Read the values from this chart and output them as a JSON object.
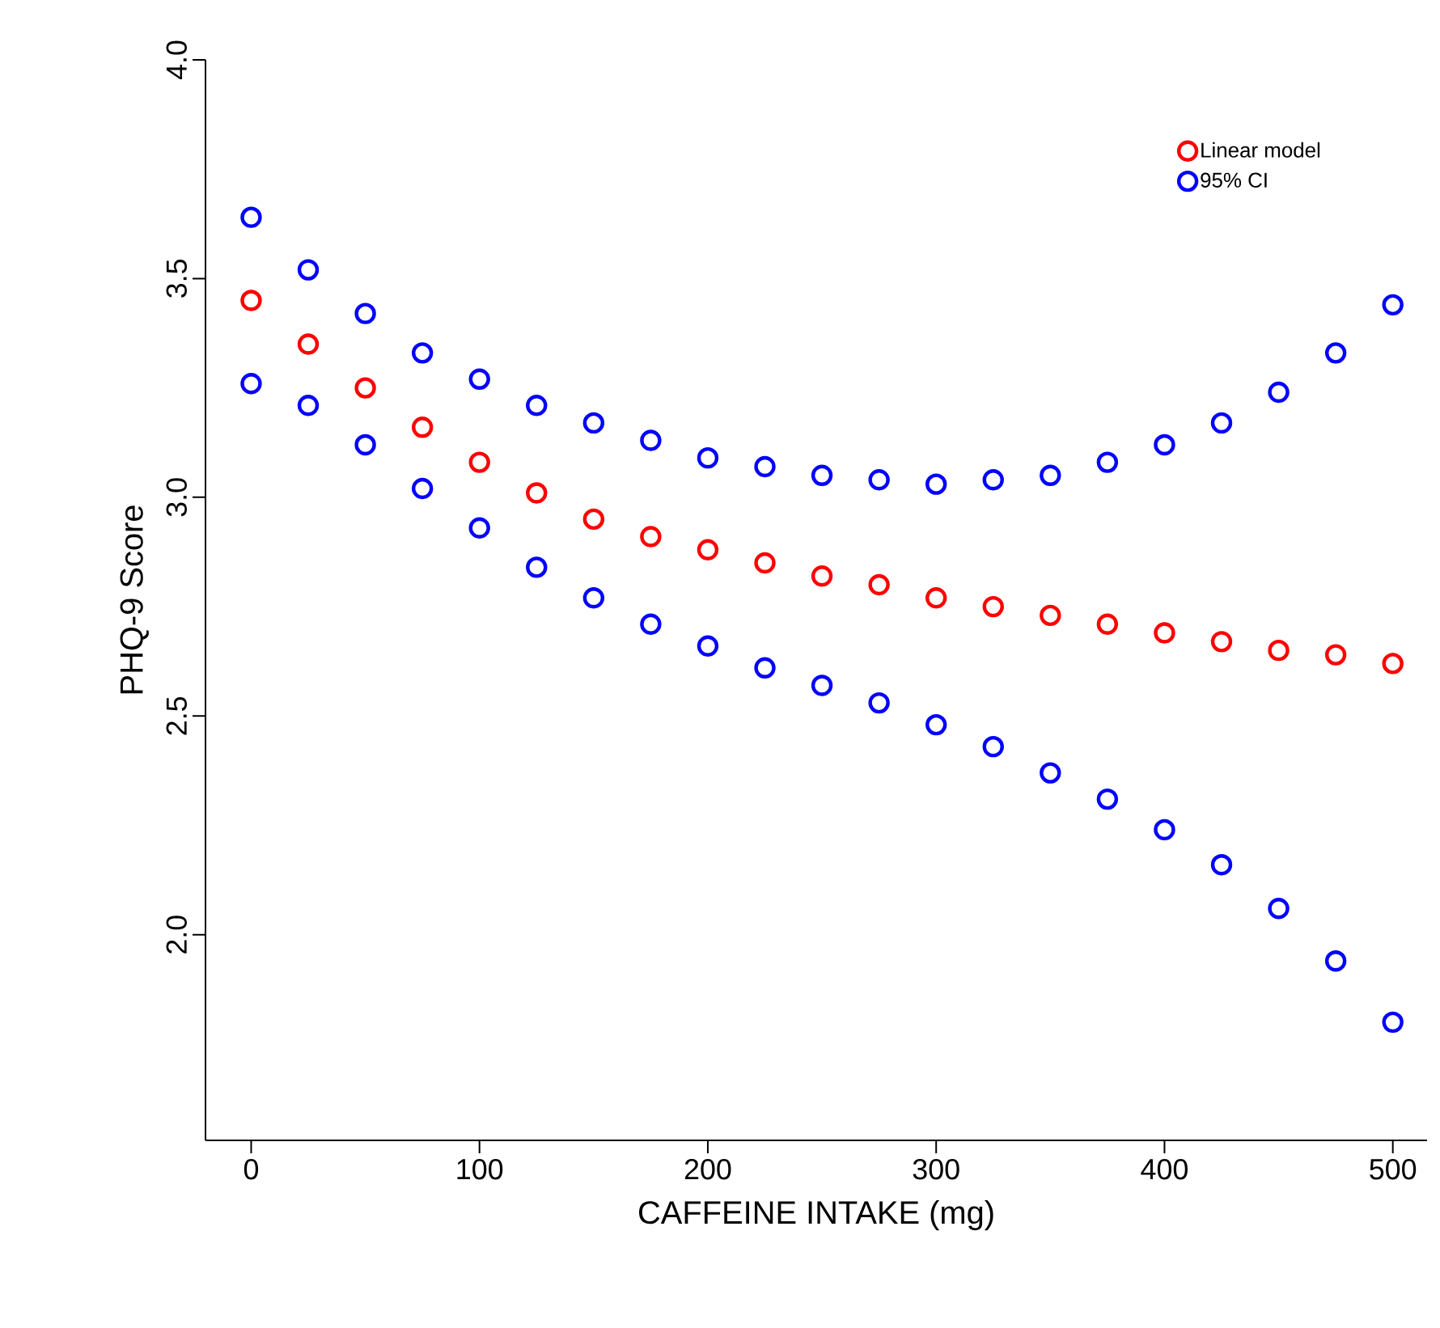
{
  "chart_data": {
    "type": "scatter",
    "xlabel": "CAFFEINE INTAKE (mg)",
    "ylabel": "PHQ-9 Score",
    "x": [
      0,
      25,
      50,
      75,
      100,
      125,
      150,
      175,
      200,
      225,
      250,
      275,
      300,
      325,
      350,
      375,
      400,
      425,
      450,
      475,
      500
    ],
    "series": [
      {
        "name": "Linear model",
        "color": "#ff0000",
        "values": [
          3.45,
          3.35,
          3.25,
          3.16,
          3.08,
          3.01,
          2.95,
          2.91,
          2.88,
          2.85,
          2.82,
          2.8,
          2.77,
          2.75,
          2.73,
          2.71,
          2.69,
          2.67,
          2.65,
          2.64,
          2.62
        ]
      },
      {
        "name": "95% CI",
        "color": "#0000ff",
        "values": [
          3.64,
          3.52,
          3.42,
          3.33,
          3.27,
          3.21,
          3.17,
          3.13,
          3.09,
          3.07,
          3.05,
          3.04,
          3.03,
          3.04,
          3.05,
          3.08,
          3.12,
          3.17,
          3.24,
          3.33,
          3.44
        ]
      },
      {
        "color": "#0000ff",
        "values": [
          3.26,
          3.21,
          3.12,
          3.02,
          2.93,
          2.84,
          2.77,
          2.71,
          2.66,
          2.61,
          2.57,
          2.53,
          2.48,
          2.43,
          2.37,
          2.31,
          2.24,
          2.16,
          2.06,
          1.94,
          1.8
        ]
      }
    ],
    "xlim": [
      -20,
      515
    ],
    "ylim": [
      1.53,
      4.0
    ],
    "xticks": [
      0,
      100,
      200,
      300,
      400,
      500
    ],
    "yticks": [
      {
        "value": 2.0,
        "label": "2.0"
      },
      {
        "value": 2.5,
        "label": "2.5"
      },
      {
        "value": 3.0,
        "label": "3.0"
      },
      {
        "value": 3.5,
        "label": "3.5"
      },
      {
        "value": 4.0,
        "label": "4.0"
      }
    ],
    "legend": "top right",
    "marker": "circle",
    "grid": false
  }
}
